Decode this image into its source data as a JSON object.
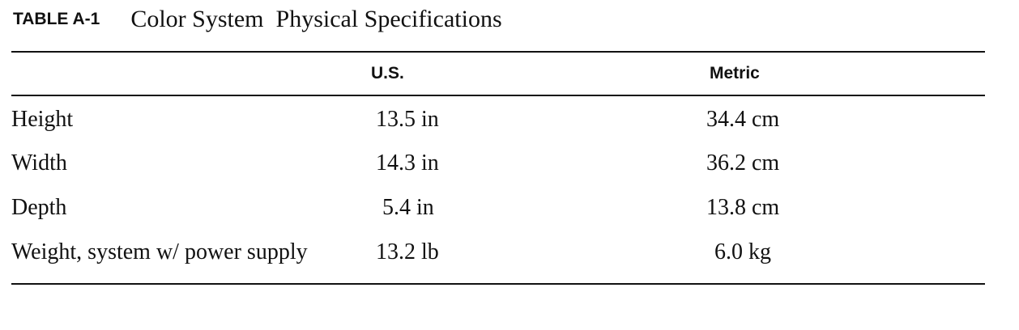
{
  "caption": {
    "label": "TABLE A-1",
    "title": "Color System  Physical Specifications"
  },
  "table": {
    "header": [
      "",
      "U.S.",
      "Metric"
    ],
    "rows": [
      [
        "Height",
        "13.5 in",
        "34.4 cm"
      ],
      [
        "Width",
        "14.3 in",
        "36.2 cm"
      ],
      [
        "Depth",
        "5.4 in",
        "13.8 cm"
      ],
      [
        "Weight, system w/ power supply",
        "13.2 lb",
        "6.0 kg"
      ]
    ]
  }
}
